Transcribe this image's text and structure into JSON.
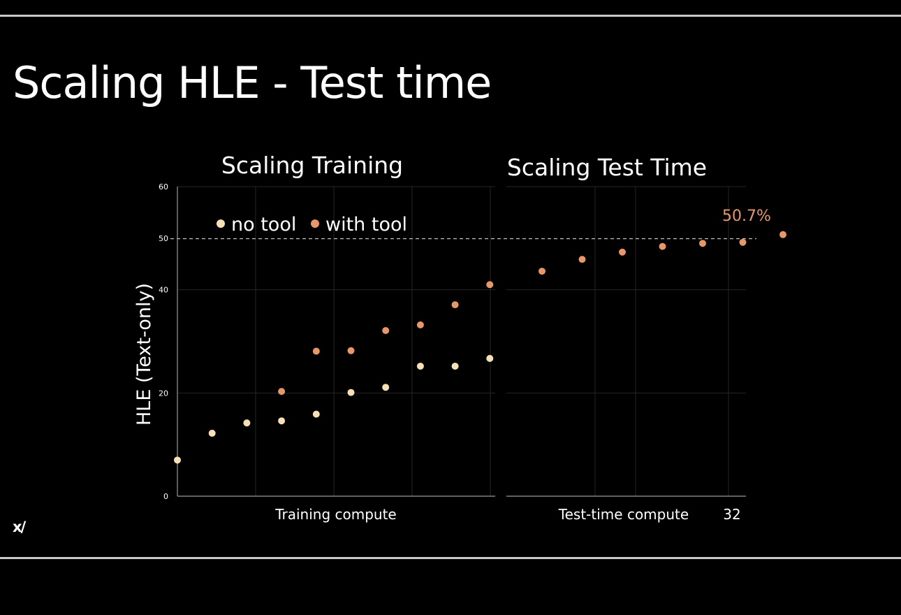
{
  "slide": {
    "title": "Scaling HLE - Test time",
    "logo_text": "x/"
  },
  "chart_data": [
    {
      "type": "scatter",
      "title": "Scaling Training",
      "xlabel": "Training compute",
      "ylabel": "HLE (Text-only)",
      "ylim": [
        0,
        60
      ],
      "yticks": [
        0,
        20,
        40,
        50,
        60
      ],
      "grid": true,
      "legend": {
        "placement": "top-left"
      },
      "series": [
        {
          "name": "no tool",
          "color": "#f7dfb8",
          "x": [
            1,
            2,
            3,
            4,
            5,
            6,
            7,
            8,
            9,
            10
          ],
          "y": [
            7,
            12.2,
            14.2,
            14.6,
            15.9,
            20.1,
            21.1,
            25.2,
            25.2,
            26.7
          ]
        },
        {
          "name": "with tool",
          "color": "#e8976a",
          "x": [
            4,
            5,
            6,
            7,
            8,
            9,
            10
          ],
          "y": [
            20.3,
            28.1,
            28.2,
            32.1,
            33.2,
            37.1,
            41.0
          ]
        }
      ]
    },
    {
      "type": "scatter",
      "title": "Scaling Test Time",
      "xlabel": "Test-time compute",
      "ylim": [
        0,
        60
      ],
      "grid": true,
      "xtick_labels": [
        {
          "x": 7,
          "label": "32"
        }
      ],
      "annotations": [
        {
          "text": "50.7%",
          "x": 7,
          "y": 50.7,
          "color": "#e8976a"
        }
      ],
      "reference_line": {
        "y": 49.9,
        "style": "dashed",
        "color": "#d0d0d0"
      },
      "series": [
        {
          "name": "with tool",
          "color": "#e8976a",
          "x": [
            1,
            2,
            3,
            4,
            5,
            6,
            7
          ],
          "y": [
            43.6,
            45.9,
            47.3,
            48.4,
            49.0,
            49.2,
            50.7
          ]
        }
      ]
    }
  ]
}
